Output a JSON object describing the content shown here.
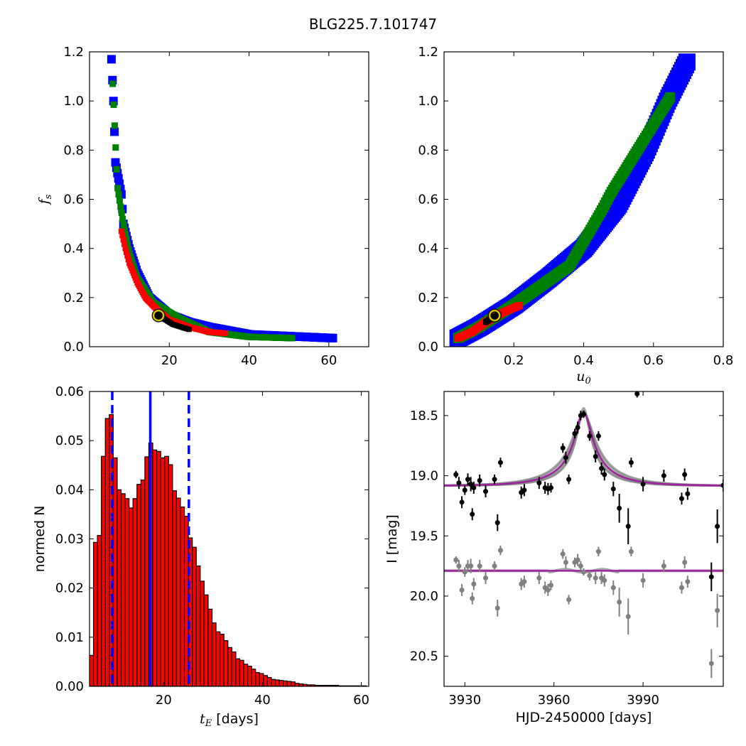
{
  "figure": {
    "title": "BLG225.7.101747"
  },
  "chart_data": [
    {
      "type": "heatmap",
      "panel": "top-left",
      "xlabel": "",
      "ylabel": "f_s",
      "xlim": [
        0,
        70
      ],
      "ylim": [
        0.0,
        1.2
      ],
      "xticks": [
        20,
        40,
        60
      ],
      "yticks": [
        0.0,
        0.2,
        0.4,
        0.6,
        0.8,
        1.0,
        1.2
      ],
      "colors": {
        "outer": "#0000ff",
        "mid": "#008000",
        "inner": "#ff0000",
        "core": "#000000",
        "best_fit": "#d4c400"
      },
      "best_fit": {
        "x": 17.3,
        "y": 0.127
      },
      "confidence_regions": {
        "blue": [
          [
            5.5,
            1.17
          ],
          [
            6,
            1.0
          ],
          [
            6.5,
            0.75
          ],
          [
            8,
            0.62
          ],
          [
            8.5,
            0.5
          ],
          [
            10,
            0.4
          ],
          [
            12,
            0.3
          ],
          [
            15,
            0.2
          ],
          [
            20,
            0.13
          ],
          [
            25,
            0.1
          ],
          [
            30,
            0.08
          ],
          [
            40,
            0.05
          ],
          [
            61,
            0.035
          ]
        ],
        "green": [
          [
            5.8,
            1.07
          ],
          [
            6.3,
            0.9
          ],
          [
            7,
            0.65
          ],
          [
            8.5,
            0.5
          ],
          [
            10,
            0.38
          ],
          [
            12,
            0.28
          ],
          [
            16,
            0.18
          ],
          [
            22,
            0.12
          ],
          [
            30,
            0.06
          ],
          [
            40,
            0.04
          ],
          [
            51,
            0.035
          ]
        ],
        "red": [
          [
            8,
            0.47
          ],
          [
            9,
            0.4
          ],
          [
            10,
            0.34
          ],
          [
            12,
            0.26
          ],
          [
            14,
            0.2
          ],
          [
            17,
            0.15
          ],
          [
            20,
            0.11
          ],
          [
            25,
            0.08
          ],
          [
            30,
            0.06
          ],
          [
            34,
            0.055
          ]
        ],
        "black": [
          [
            17,
            0.13
          ],
          [
            19,
            0.11
          ],
          [
            21,
            0.09
          ],
          [
            23,
            0.08
          ],
          [
            25,
            0.07
          ]
        ]
      }
    },
    {
      "type": "heatmap",
      "panel": "top-right",
      "xlabel": "u_0",
      "ylabel": "",
      "xlim": [
        0.0,
        0.8
      ],
      "ylim": [
        0.0,
        1.2
      ],
      "xticks": [
        0.2,
        0.4,
        0.6,
        0.8
      ],
      "yticks": [
        0.0,
        0.2,
        0.4,
        0.6,
        0.8,
        1.0,
        1.2
      ],
      "colors": {
        "outer": "#0000ff",
        "mid": "#008000",
        "inner": "#ff0000",
        "core": "#000000",
        "best_fit": "#d4c400"
      },
      "best_fit": {
        "x": 0.145,
        "y": 0.127
      },
      "confidence_regions": {
        "blue": [
          [
            0.04,
            0.035
          ],
          [
            0.1,
            0.08
          ],
          [
            0.2,
            0.17
          ],
          [
            0.3,
            0.28
          ],
          [
            0.4,
            0.4
          ],
          [
            0.5,
            0.58
          ],
          [
            0.58,
            0.8
          ],
          [
            0.64,
            1.0
          ],
          [
            0.7,
            1.17
          ]
        ],
        "green": [
          [
            0.04,
            0.035
          ],
          [
            0.1,
            0.08
          ],
          [
            0.2,
            0.17
          ],
          [
            0.3,
            0.27
          ],
          [
            0.36,
            0.33
          ],
          [
            0.45,
            0.55
          ],
          [
            0.48,
            0.63
          ],
          [
            0.65,
            1.02
          ]
        ],
        "red": [
          [
            0.04,
            0.035
          ],
          [
            0.08,
            0.06
          ],
          [
            0.12,
            0.1
          ],
          [
            0.17,
            0.14
          ],
          [
            0.22,
            0.17
          ]
        ],
        "black": [
          [
            0.12,
            0.1
          ],
          [
            0.14,
            0.12
          ],
          [
            0.16,
            0.13
          ]
        ]
      }
    },
    {
      "type": "bar",
      "panel": "bottom-left",
      "xlabel_var": "t_E",
      "xlabel": "[days]",
      "ylabel": "normed N",
      "xlim": [
        5,
        61.5
      ],
      "ylim": [
        0.0,
        0.06
      ],
      "xticks": [
        20,
        40,
        60
      ],
      "yticks": [
        0.0,
        0.01,
        0.02,
        0.03,
        0.04,
        0.05,
        0.06
      ],
      "bar_color": "#ff0000",
      "bin_width": 0.8,
      "x": [
        5.4,
        6.2,
        7.0,
        7.8,
        8.6,
        9.4,
        10.2,
        11.0,
        11.8,
        12.6,
        13.4,
        14.2,
        15.0,
        15.8,
        16.6,
        17.4,
        18.2,
        19.0,
        19.8,
        20.6,
        21.4,
        22.2,
        23.0,
        23.8,
        24.6,
        25.4,
        26.2,
        27.0,
        27.8,
        28.6,
        29.4,
        30.2,
        31.0,
        31.8,
        32.6,
        33.4,
        34.2,
        35.0,
        35.8,
        36.6,
        37.4,
        38.2,
        39.0,
        39.8,
        40.6,
        41.4,
        42.2,
        43.0,
        43.8,
        44.6,
        45.4,
        46.2,
        47.0,
        47.8,
        48.6,
        49.4,
        50.2,
        51.0,
        51.8,
        52.6,
        53.4,
        54.2,
        55.0,
        55.8,
        56.6,
        57.4,
        58.2,
        59.0,
        59.8,
        60.6
      ],
      "values": [
        0.0063,
        0.0293,
        0.0307,
        0.0468,
        0.0545,
        0.0553,
        0.0465,
        0.04,
        0.0392,
        0.0382,
        0.0363,
        0.0382,
        0.0411,
        0.042,
        0.0467,
        0.0495,
        0.0481,
        0.0478,
        0.0465,
        0.0468,
        0.0451,
        0.0398,
        0.0383,
        0.0365,
        0.0346,
        0.0302,
        0.0283,
        0.0245,
        0.0214,
        0.0186,
        0.0157,
        0.0129,
        0.0111,
        0.0106,
        0.0093,
        0.0079,
        0.007,
        0.0056,
        0.0053,
        0.0045,
        0.0041,
        0.0035,
        0.0028,
        0.0026,
        0.0022,
        0.0018,
        0.0014,
        0.0013,
        0.0012,
        0.0011,
        0.001,
        0.0009,
        0.0006,
        0.0005,
        0.0004,
        0.0003,
        0.0003,
        0.0002,
        0.0002,
        0.0002,
        0.0002,
        0.0002,
        0.0002,
        0.0001,
        0.0001,
        0.0001,
        0.0001,
        0.0001,
        0.0001,
        0.0001
      ],
      "vlines": {
        "median": 17.3,
        "lower": 9.6,
        "upper": 25.1,
        "color": "#0000ff"
      }
    },
    {
      "type": "scatter",
      "panel": "bottom-right",
      "xlabel": "HJD-2450000 [days]",
      "ylabel": "I [mag]",
      "xlim": [
        3923,
        4017
      ],
      "ylim": [
        20.75,
        18.3
      ],
      "y_inverted": true,
      "xticks": [
        3930,
        3960,
        3990
      ],
      "yticks": [
        18.5,
        19.0,
        19.5,
        20.0,
        20.5
      ],
      "colors": {
        "data": "#000000",
        "residuals": "#808080",
        "model": "#a020a0",
        "model_samples": "#808080"
      },
      "model": {
        "t0": 3970.0,
        "tE": 17.3,
        "u0": 0.145,
        "fs": 0.127,
        "baseline": 19.085,
        "residual_baseline": 19.79
      },
      "series": [
        {
          "name": "",
          "points": [
            [
              3927,
              18.99,
              0.03
            ],
            [
              3928,
              19.06,
              0.05
            ],
            [
              3929,
              19.22,
              0.05
            ],
            [
              3930,
              19.12,
              0.04
            ],
            [
              3931,
              19.03,
              0.05
            ],
            [
              3932,
              19.07,
              0.06
            ],
            [
              3932.5,
              19.32,
              0.05
            ],
            [
              3933,
              19.1,
              0.05
            ],
            [
              3935,
              19.04,
              0.05
            ],
            [
              3937,
              19.13,
              0.05
            ],
            [
              3940,
              19.03,
              0.04
            ],
            [
              3941,
              19.39,
              0.07
            ],
            [
              3942,
              18.89,
              0.04
            ],
            [
              3949,
              19.14,
              0.05
            ],
            [
              3950,
              19.12,
              0.05
            ],
            [
              3955,
              19.06,
              0.05
            ],
            [
              3957,
              19.1,
              0.05
            ],
            [
              3958,
              19.11,
              0.05
            ],
            [
              3959,
              19.1,
              0.04
            ],
            [
              3963,
              18.77,
              0.04
            ],
            [
              3964,
              18.85,
              0.05
            ],
            [
              3965,
              19.03,
              0.04
            ],
            [
              3967,
              18.65,
              0.04
            ],
            [
              3968,
              18.6,
              0.05
            ],
            [
              3969,
              18.5,
              0.04
            ],
            [
              3970,
              18.49,
              0.03
            ],
            [
              3972,
              18.67,
              0.04
            ],
            [
              3974,
              18.84,
              0.05
            ],
            [
              3975,
              18.67,
              0.04
            ],
            [
              3976,
              18.94,
              0.05
            ],
            [
              3977,
              18.99,
              0.05
            ],
            [
              3980,
              19.11,
              0.06
            ],
            [
              3982,
              19.27,
              0.12
            ],
            [
              3985,
              19.42,
              0.15
            ],
            [
              3986,
              18.89,
              0.04
            ],
            [
              3988,
              18.32,
              0.03
            ],
            [
              3990,
              19.07,
              0.06
            ],
            [
              3997,
              19.0,
              0.05
            ],
            [
              4003,
              19.19,
              0.05
            ],
            [
              4004,
              18.99,
              0.05
            ],
            [
              4005,
              19.15,
              0.05
            ],
            [
              4013,
              19.84,
              0.12
            ],
            [
              4015,
              19.42,
              0.14
            ],
            [
              4017,
              19.08,
              0.05
            ]
          ]
        },
        {
          "name": "",
          "points": [
            [
              3927,
              19.7,
              0.03
            ],
            [
              3928,
              19.75,
              0.05
            ],
            [
              3929,
              19.95,
              0.05
            ],
            [
              3930,
              19.8,
              0.04
            ],
            [
              3931,
              19.75,
              0.05
            ],
            [
              3932,
              19.75,
              0.06
            ],
            [
              3932.5,
              20.02,
              0.05
            ],
            [
              3933,
              19.9,
              0.05
            ],
            [
              3935,
              19.75,
              0.05
            ],
            [
              3937,
              19.85,
              0.05
            ],
            [
              3940,
              19.75,
              0.04
            ],
            [
              3941,
              20.1,
              0.07
            ],
            [
              3942,
              19.62,
              0.04
            ],
            [
              3949,
              19.9,
              0.05
            ],
            [
              3950,
              19.88,
              0.05
            ],
            [
              3955,
              19.85,
              0.05
            ],
            [
              3957,
              19.93,
              0.05
            ],
            [
              3958,
              19.95,
              0.05
            ],
            [
              3959,
              19.91,
              0.04
            ],
            [
              3963,
              19.65,
              0.04
            ],
            [
              3964,
              19.72,
              0.05
            ],
            [
              3965,
              20.03,
              0.04
            ],
            [
              3967,
              19.72,
              0.04
            ],
            [
              3968,
              19.7,
              0.05
            ],
            [
              3969,
              19.75,
              0.04
            ],
            [
              3970,
              19.8,
              0.03
            ],
            [
              3972,
              19.83,
              0.04
            ],
            [
              3974,
              19.85,
              0.05
            ],
            [
              3975,
              19.63,
              0.04
            ],
            [
              3976,
              19.85,
              0.05
            ],
            [
              3977,
              19.87,
              0.05
            ],
            [
              3980,
              19.93,
              0.06
            ],
            [
              3982,
              20.05,
              0.12
            ],
            [
              3985,
              20.17,
              0.15
            ],
            [
              3986,
              19.63,
              0.04
            ],
            [
              3990,
              19.87,
              0.06
            ],
            [
              3997,
              19.75,
              0.05
            ],
            [
              4003,
              19.93,
              0.05
            ],
            [
              4004,
              19.72,
              0.05
            ],
            [
              4005,
              19.88,
              0.05
            ],
            [
              4013,
              20.56,
              0.12
            ],
            [
              4015,
              20.12,
              0.14
            ]
          ]
        }
      ]
    }
  ]
}
